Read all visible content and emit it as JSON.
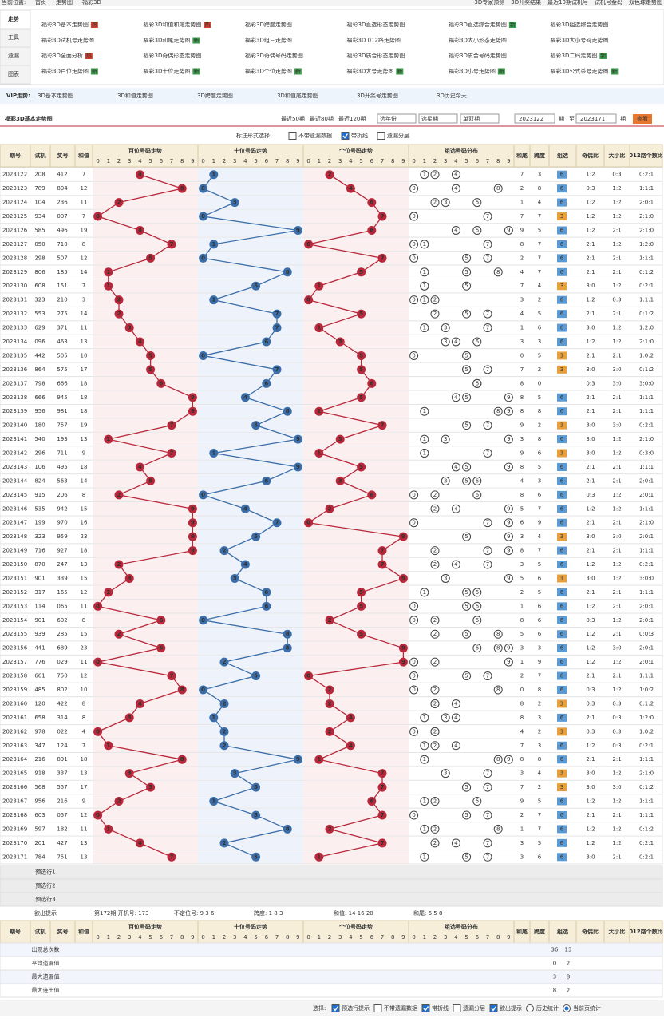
{
  "breadcrumb": {
    "label": "当前位置:",
    "items": [
      "首页",
      "走势图",
      "福彩3D"
    ]
  },
  "top_links": [
    "3D专家预测",
    "3D开奖结果",
    "最近10期试机号",
    "试机号金码",
    "双色球走势图"
  ],
  "side_tabs": [
    "走势",
    "工具",
    "遗漏",
    "图表"
  ],
  "chart_links": [
    {
      "text": "福彩3D基本走势图",
      "badge": "热"
    },
    {
      "text": "福彩3D和值和尾走势图",
      "badge": "热"
    },
    {
      "text": "福彩3D跨度走势图"
    },
    {
      "text": "福彩3D直选形态走势图"
    },
    {
      "text": "福彩3D直选综合走势图",
      "badge": "新"
    },
    {
      "text": "福彩3D组选综合走势图"
    },
    {
      "text": "福彩3D试机号走势图"
    },
    {
      "text": "福彩3D和尾走势图",
      "badge": "新"
    },
    {
      "text": "福彩3D组三走势图"
    },
    {
      "text": "福彩3D 012路走势图"
    },
    {
      "text": "福彩3D大小形态走势图"
    },
    {
      "text": "福彩3D大小号码走势图"
    },
    {
      "text": "福彩3D全面分析",
      "badge": "热"
    },
    {
      "text": "福彩3D奇偶形态走势图"
    },
    {
      "text": "福彩3D奇偶号码走势图"
    },
    {
      "text": "福彩3D质合形态走势图"
    },
    {
      "text": "福彩3D质合号码走势图"
    },
    {
      "text": "福彩3D二码走势图",
      "badge": "新"
    },
    {
      "text": "福彩3D百位走势图",
      "badge": "新"
    },
    {
      "text": "福彩3D十位走势图",
      "badge": "新"
    },
    {
      "text": "福彩3D个位走势图",
      "badge": "新"
    },
    {
      "text": "福彩3D大号走势图",
      "badge": "新"
    },
    {
      "text": "福彩3D小号走势图",
      "badge": "新"
    },
    {
      "text": "福彩3D公式杀号走势图",
      "badge": "新"
    }
  ],
  "vip": {
    "label": "VIP走势:",
    "links": [
      "3D基本走势图",
      "3D和值走势图",
      "3D跨度走势图",
      "3D和值尾走势图",
      "3D开奖号走势图",
      "3D历史今天"
    ]
  },
  "title": "福彩3D基本走势图",
  "range_links": [
    "最近50期",
    "最近80期",
    "最近120期"
  ],
  "selects": [
    "选年份",
    "选星期",
    "单双期"
  ],
  "period_from": "2023122",
  "unit": "期",
  "to_label": "至",
  "period_to": "2023171",
  "view_button": "查看",
  "mark_options": {
    "label": "标注形式选择:",
    "options": [
      {
        "text": "不带遗漏数据",
        "checked": false
      },
      {
        "text": "带折线",
        "checked": true
      },
      {
        "text": "遗漏分层",
        "checked": false
      }
    ]
  },
  "table": {
    "headers": [
      "期号",
      "试机",
      "奖号",
      "和值",
      "百位号码走势",
      "十位号码走势",
      "个位号码走势",
      "组选号码分布",
      "和尾",
      "跨度",
      "组选",
      "奇偶比",
      "大小比",
      "012路个数比"
    ],
    "digits": [
      0,
      1,
      2,
      3,
      4,
      5,
      6,
      7,
      8,
      9
    ],
    "rows": [
      [
        "2023122",
        "208",
        "412",
        7,
        4,
        1,
        2,
        7,
        3,
        6,
        "1:2",
        "0:3",
        "0:2:1"
      ],
      [
        "2023123",
        "789",
        "804",
        12,
        8,
        0,
        4,
        2,
        8,
        6,
        "0:3",
        "1:2",
        "1:1:1"
      ],
      [
        "2023124",
        "104",
        "236",
        11,
        2,
        3,
        6,
        1,
        4,
        6,
        "1:2",
        "1:2",
        "2:0:1"
      ],
      [
        "2023125",
        "934",
        "007",
        7,
        0,
        0,
        7,
        7,
        7,
        3,
        "1:2",
        "1:2",
        "2:1:0"
      ],
      [
        "2023126",
        "585",
        "496",
        19,
        4,
        9,
        6,
        9,
        5,
        6,
        "1:2",
        "2:1",
        "2:1:0"
      ],
      [
        "2023127",
        "050",
        "710",
        8,
        7,
        1,
        0,
        8,
        7,
        6,
        "2:1",
        "1:2",
        "1:2:0"
      ],
      [
        "2023128",
        "298",
        "507",
        12,
        5,
        0,
        7,
        2,
        7,
        6,
        "2:1",
        "2:1",
        "1:1:1"
      ],
      [
        "2023129",
        "806",
        "185",
        14,
        1,
        8,
        5,
        4,
        7,
        6,
        "2:1",
        "2:1",
        "0:1:2"
      ],
      [
        "2023130",
        "608",
        "151",
        7,
        1,
        5,
        1,
        7,
        4,
        3,
        "3:0",
        "1:2",
        "0:2:1"
      ],
      [
        "2023131",
        "323",
        "210",
        3,
        2,
        1,
        0,
        3,
        2,
        6,
        "1:2",
        "0:3",
        "1:1:1"
      ],
      [
        "2023132",
        "553",
        "275",
        14,
        2,
        7,
        5,
        4,
        5,
        6,
        "2:1",
        "2:1",
        "0:1:2"
      ],
      [
        "2023133",
        "629",
        "371",
        11,
        3,
        7,
        1,
        1,
        6,
        6,
        "3:0",
        "1:2",
        "1:2:0"
      ],
      [
        "2023134",
        "096",
        "463",
        13,
        4,
        6,
        3,
        3,
        3,
        6,
        "1:2",
        "1:2",
        "2:1:0"
      ],
      [
        "2023135",
        "442",
        "505",
        10,
        5,
        0,
        5,
        0,
        5,
        3,
        "2:1",
        "2:1",
        "1:0:2"
      ],
      [
        "2023136",
        "864",
        "575",
        17,
        5,
        7,
        5,
        7,
        2,
        3,
        "3:0",
        "3:0",
        "0:1:2"
      ],
      [
        "2023137",
        "798",
        "666",
        18,
        6,
        6,
        6,
        8,
        0,
        null,
        "0:3",
        "3:0",
        "3:0:0"
      ],
      [
        "2023138",
        "666",
        "945",
        18,
        9,
        4,
        5,
        8,
        5,
        6,
        "2:1",
        "2:1",
        "1:1:1"
      ],
      [
        "2023139",
        "956",
        "981",
        18,
        9,
        8,
        1,
        8,
        8,
        6,
        "2:1",
        "2:1",
        "1:1:1"
      ],
      [
        "2023140",
        "180",
        "757",
        19,
        7,
        5,
        7,
        9,
        2,
        3,
        "3:0",
        "3:0",
        "0:2:1"
      ],
      [
        "2023141",
        "540",
        "193",
        13,
        1,
        9,
        3,
        3,
        8,
        6,
        "3:0",
        "1:2",
        "2:1:0"
      ],
      [
        "2023142",
        "296",
        "711",
        9,
        7,
        1,
        1,
        9,
        6,
        3,
        "3:0",
        "1:2",
        "0:3:0"
      ],
      [
        "2023143",
        "106",
        "495",
        18,
        4,
        9,
        5,
        8,
        5,
        6,
        "2:1",
        "2:1",
        "1:1:1"
      ],
      [
        "2023144",
        "824",
        "563",
        14,
        5,
        6,
        3,
        4,
        3,
        6,
        "2:1",
        "2:1",
        "2:0:1"
      ],
      [
        "2023145",
        "915",
        "206",
        8,
        2,
        0,
        6,
        8,
        6,
        6,
        "0:3",
        "1:2",
        "2:0:1"
      ],
      [
        "2023146",
        "535",
        "942",
        15,
        9,
        4,
        2,
        5,
        7,
        6,
        "1:2",
        "1:2",
        "1:1:1"
      ],
      [
        "2023147",
        "199",
        "970",
        16,
        9,
        7,
        0,
        6,
        9,
        6,
        "2:1",
        "2:1",
        "2:1:0"
      ],
      [
        "2023148",
        "323",
        "959",
        23,
        9,
        5,
        9,
        3,
        4,
        3,
        "3:0",
        "3:0",
        "2:0:1"
      ],
      [
        "2023149",
        "716",
        "927",
        18,
        9,
        2,
        7,
        8,
        7,
        6,
        "2:1",
        "2:1",
        "1:1:1"
      ],
      [
        "2023150",
        "870",
        "247",
        13,
        2,
        4,
        7,
        3,
        5,
        6,
        "1:2",
        "1:2",
        "0:2:1"
      ],
      [
        "2023151",
        "901",
        "339",
        15,
        3,
        3,
        9,
        5,
        6,
        3,
        "3:0",
        "1:2",
        "3:0:0"
      ],
      [
        "2023152",
        "317",
        "165",
        12,
        1,
        6,
        5,
        2,
        5,
        6,
        "2:1",
        "2:1",
        "1:1:1"
      ],
      [
        "2023153",
        "114",
        "065",
        11,
        0,
        6,
        5,
        1,
        6,
        6,
        "1:2",
        "2:1",
        "2:0:1"
      ],
      [
        "2023154",
        "901",
        "602",
        8,
        6,
        0,
        2,
        8,
        6,
        6,
        "0:3",
        "1:2",
        "2:0:1"
      ],
      [
        "2023155",
        "939",
        "285",
        15,
        2,
        8,
        5,
        5,
        6,
        6,
        "1:2",
        "2:1",
        "0:0:3"
      ],
      [
        "2023156",
        "441",
        "689",
        23,
        6,
        8,
        9,
        3,
        3,
        6,
        "1:2",
        "3:0",
        "2:0:1"
      ],
      [
        "2023157",
        "776",
        "029",
        11,
        0,
        2,
        9,
        1,
        9,
        6,
        "1:2",
        "1:2",
        "2:0:1"
      ],
      [
        "2023158",
        "661",
        "750",
        12,
        7,
        5,
        0,
        2,
        7,
        6,
        "2:1",
        "2:1",
        "1:1:1"
      ],
      [
        "2023159",
        "485",
        "802",
        10,
        8,
        0,
        2,
        0,
        8,
        6,
        "0:3",
        "1:2",
        "1:0:2"
      ],
      [
        "2023160",
        "120",
        "422",
        8,
        4,
        2,
        2,
        8,
        2,
        3,
        "0:3",
        "0:3",
        "0:1:2"
      ],
      [
        "2023161",
        "658",
        "314",
        8,
        3,
        1,
        4,
        8,
        3,
        6,
        "2:1",
        "0:3",
        "1:2:0"
      ],
      [
        "2023162",
        "978",
        "022",
        4,
        0,
        2,
        2,
        4,
        2,
        3,
        "0:3",
        "0:3",
        "1:0:2"
      ],
      [
        "2023163",
        "347",
        "124",
        7,
        1,
        2,
        4,
        7,
        3,
        6,
        "1:2",
        "0:3",
        "0:2:1"
      ],
      [
        "2023164",
        "216",
        "891",
        18,
        8,
        9,
        1,
        8,
        8,
        6,
        "2:1",
        "2:1",
        "1:1:1"
      ],
      [
        "2023165",
        "918",
        "337",
        13,
        3,
        3,
        7,
        3,
        4,
        3,
        "3:0",
        "1:2",
        "2:1:0"
      ],
      [
        "2023166",
        "568",
        "557",
        17,
        5,
        5,
        7,
        7,
        2,
        3,
        "3:0",
        "3:0",
        "0:1:2"
      ],
      [
        "2023167",
        "956",
        "216",
        9,
        2,
        1,
        6,
        9,
        5,
        6,
        "1:2",
        "1:2",
        "1:1:1"
      ],
      [
        "2023168",
        "603",
        "057",
        12,
        0,
        5,
        7,
        2,
        7,
        6,
        "2:1",
        "2:1",
        "1:1:1"
      ],
      [
        "2023169",
        "597",
        "182",
        11,
        1,
        8,
        2,
        1,
        7,
        6,
        "1:2",
        "1:2",
        "0:1:2"
      ],
      [
        "2023170",
        "201",
        "427",
        13,
        4,
        2,
        7,
        3,
        5,
        6,
        "1:2",
        "1:2",
        "0:2:1"
      ],
      [
        "2023171",
        "784",
        "751",
        13,
        7,
        5,
        1,
        3,
        6,
        6,
        "3:0",
        "2:1",
        "0:2:1"
      ]
    ],
    "preselect_rows": [
      "预选行1",
      "预选行2",
      "预选行3"
    ]
  },
  "hint": {
    "label": "欲出提示",
    "items": [
      "第172期 开机号: 173",
      "不定位号: 9 3 6",
      "跨度: 1 8 3",
      "和值: 14 16 20",
      "和尾: 6 5 8"
    ]
  },
  "stats": [
    {
      "label": "出现总次数",
      "group": [
        36,
        13
      ]
    },
    {
      "label": "平均遗漏值",
      "group": [
        0,
        2
      ]
    },
    {
      "label": "最大遗漏值",
      "group": [
        3,
        8
      ]
    },
    {
      "label": "最大连出值",
      "group": [
        8,
        2
      ]
    }
  ],
  "bottom_options": {
    "label": "选择:",
    "options": [
      {
        "text": "预选行提示",
        "checked": true,
        "kind": "checkbox"
      },
      {
        "text": "不带遗漏数据",
        "checked": false,
        "kind": "checkbox"
      },
      {
        "text": "带折线",
        "checked": true,
        "kind": "checkbox"
      },
      {
        "text": "遗漏分层",
        "checked": false,
        "kind": "checkbox"
      },
      {
        "text": "欲出提示",
        "checked": true,
        "kind": "checkbox"
      },
      {
        "text": "历史统计",
        "checked": false,
        "kind": "radio"
      },
      {
        "text": "当前页统计",
        "checked": true,
        "kind": "radio"
      }
    ]
  }
}
